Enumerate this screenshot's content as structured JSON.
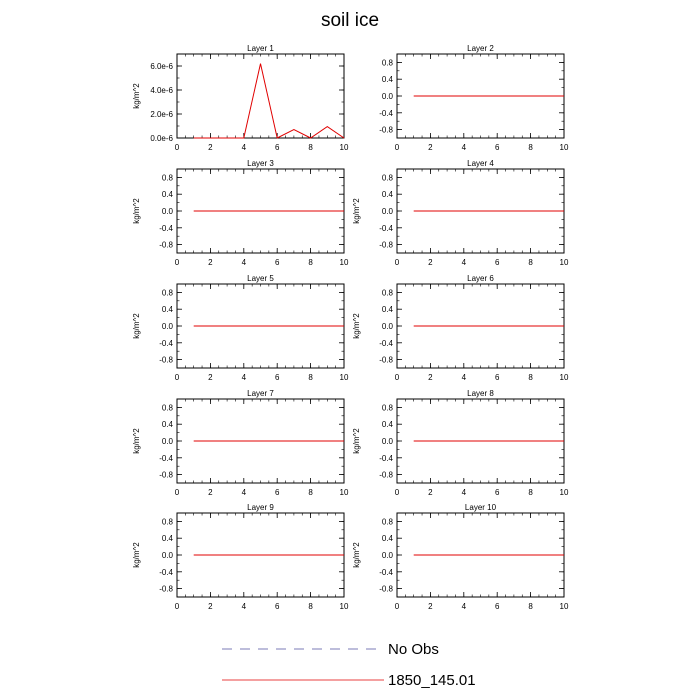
{
  "title": "soil ice",
  "legend": [
    {
      "label": "No Obs",
      "color": "#5050a0",
      "dash": true
    },
    {
      "label": "1850_145.01",
      "color": "#e00000",
      "dash": false
    }
  ],
  "chart_data": [
    {
      "type": "line",
      "title": "Layer 1",
      "ylabel": "kg/m^2",
      "xlim": [
        0,
        10
      ],
      "ylim": [
        0,
        7e-06
      ],
      "xticks": [
        "0",
        "2",
        "4",
        "6",
        "8",
        "10"
      ],
      "yticks": [
        0,
        2e-06,
        4e-06,
        6e-06
      ],
      "ytick_labels": [
        "0.0e-6",
        "2.0e-6",
        "4.0e-6",
        "6.0e-6"
      ],
      "series": [
        {
          "name": "1850_145.01",
          "color": "#e00000",
          "x": [
            1,
            2,
            3,
            4,
            5,
            6,
            7,
            8,
            9,
            10
          ],
          "y": [
            0,
            0,
            0,
            0,
            6.2e-06,
            0,
            7e-07,
            0,
            9.5e-07,
            0
          ]
        }
      ]
    },
    {
      "type": "line",
      "title": "Layer 2",
      "ylabel": "",
      "xlim": [
        0,
        10
      ],
      "ylim": [
        -1,
        1
      ],
      "xticks": [
        "0",
        "2",
        "4",
        "6",
        "8",
        "10"
      ],
      "yticks": [
        -0.8,
        -0.4,
        0,
        0.4,
        0.8
      ],
      "ytick_labels": [
        "-0.8",
        "-0.4",
        "0.0",
        "0.4",
        "0.8"
      ],
      "series": [
        {
          "name": "1850_145.01",
          "color": "#e00000",
          "x": [
            1,
            2,
            3,
            4,
            5,
            6,
            7,
            8,
            9,
            10
          ],
          "y": [
            0,
            0,
            0,
            0,
            0,
            0,
            0,
            0,
            0,
            0
          ]
        }
      ]
    },
    {
      "type": "line",
      "title": "Layer 3",
      "ylabel": "kg/m^2",
      "xlim": [
        0,
        10
      ],
      "ylim": [
        -1,
        1
      ],
      "xticks": [
        "0",
        "2",
        "4",
        "6",
        "8",
        "10"
      ],
      "yticks": [
        -0.8,
        -0.4,
        0,
        0.4,
        0.8
      ],
      "ytick_labels": [
        "-0.8",
        "-0.4",
        "0.0",
        "0.4",
        "0.8"
      ],
      "series": [
        {
          "name": "1850_145.01",
          "color": "#e00000",
          "x": [
            1,
            2,
            3,
            4,
            5,
            6,
            7,
            8,
            9,
            10
          ],
          "y": [
            0,
            0,
            0,
            0,
            0,
            0,
            0,
            0,
            0,
            0
          ]
        }
      ]
    },
    {
      "type": "line",
      "title": "Layer 4",
      "ylabel": "kg/m^2",
      "xlim": [
        0,
        10
      ],
      "ylim": [
        -1,
        1
      ],
      "xticks": [
        "0",
        "2",
        "4",
        "6",
        "8",
        "10"
      ],
      "yticks": [
        -0.8,
        -0.4,
        0,
        0.4,
        0.8
      ],
      "ytick_labels": [
        "-0.8",
        "-0.4",
        "0.0",
        "0.4",
        "0.8"
      ],
      "series": [
        {
          "name": "1850_145.01",
          "color": "#e00000",
          "x": [
            1,
            2,
            3,
            4,
            5,
            6,
            7,
            8,
            9,
            10
          ],
          "y": [
            0,
            0,
            0,
            0,
            0,
            0,
            0,
            0,
            0,
            0
          ]
        }
      ]
    },
    {
      "type": "line",
      "title": "Layer 5",
      "ylabel": "kg/m^2",
      "xlim": [
        0,
        10
      ],
      "ylim": [
        -1,
        1
      ],
      "xticks": [
        "0",
        "2",
        "4",
        "6",
        "8",
        "10"
      ],
      "yticks": [
        -0.8,
        -0.4,
        0,
        0.4,
        0.8
      ],
      "ytick_labels": [
        "-0.8",
        "-0.4",
        "0.0",
        "0.4",
        "0.8"
      ],
      "series": [
        {
          "name": "1850_145.01",
          "color": "#e00000",
          "x": [
            1,
            2,
            3,
            4,
            5,
            6,
            7,
            8,
            9,
            10
          ],
          "y": [
            0,
            0,
            0,
            0,
            0,
            0,
            0,
            0,
            0,
            0
          ]
        }
      ]
    },
    {
      "type": "line",
      "title": "Layer 6",
      "ylabel": "kg/m^2",
      "xlim": [
        0,
        10
      ],
      "ylim": [
        -1,
        1
      ],
      "xticks": [
        "0",
        "2",
        "4",
        "6",
        "8",
        "10"
      ],
      "yticks": [
        -0.8,
        -0.4,
        0,
        0.4,
        0.8
      ],
      "ytick_labels": [
        "-0.8",
        "-0.4",
        "0.0",
        "0.4",
        "0.8"
      ],
      "series": [
        {
          "name": "1850_145.01",
          "color": "#e00000",
          "x": [
            1,
            2,
            3,
            4,
            5,
            6,
            7,
            8,
            9,
            10
          ],
          "y": [
            0,
            0,
            0,
            0,
            0,
            0,
            0,
            0,
            0,
            0
          ]
        }
      ]
    },
    {
      "type": "line",
      "title": "Layer 7",
      "ylabel": "kg/m^2",
      "xlim": [
        0,
        10
      ],
      "ylim": [
        -1,
        1
      ],
      "xticks": [
        "0",
        "2",
        "4",
        "6",
        "8",
        "10"
      ],
      "yticks": [
        -0.8,
        -0.4,
        0,
        0.4,
        0.8
      ],
      "ytick_labels": [
        "-0.8",
        "-0.4",
        "0.0",
        "0.4",
        "0.8"
      ],
      "series": [
        {
          "name": "1850_145.01",
          "color": "#e00000",
          "x": [
            1,
            2,
            3,
            4,
            5,
            6,
            7,
            8,
            9,
            10
          ],
          "y": [
            0,
            0,
            0,
            0,
            0,
            0,
            0,
            0,
            0,
            0
          ]
        }
      ]
    },
    {
      "type": "line",
      "title": "Layer 8",
      "ylabel": "kg/m^2",
      "xlim": [
        0,
        10
      ],
      "ylim": [
        -1,
        1
      ],
      "xticks": [
        "0",
        "2",
        "4",
        "6",
        "8",
        "10"
      ],
      "yticks": [
        -0.8,
        -0.4,
        0,
        0.4,
        0.8
      ],
      "ytick_labels": [
        "-0.8",
        "-0.4",
        "0.0",
        "0.4",
        "0.8"
      ],
      "series": [
        {
          "name": "1850_145.01",
          "color": "#e00000",
          "x": [
            1,
            2,
            3,
            4,
            5,
            6,
            7,
            8,
            9,
            10
          ],
          "y": [
            0,
            0,
            0,
            0,
            0,
            0,
            0,
            0,
            0,
            0
          ]
        }
      ]
    },
    {
      "type": "line",
      "title": "Layer 9",
      "ylabel": "kg/m^2",
      "xlim": [
        0,
        10
      ],
      "ylim": [
        -1,
        1
      ],
      "xticks": [
        "0",
        "2",
        "4",
        "6",
        "8",
        "10"
      ],
      "yticks": [
        -0.8,
        -0.4,
        0,
        0.4,
        0.8
      ],
      "ytick_labels": [
        "-0.8",
        "-0.4",
        "0.0",
        "0.4",
        "0.8"
      ],
      "series": [
        {
          "name": "1850_145.01",
          "color": "#e00000",
          "x": [
            1,
            2,
            3,
            4,
            5,
            6,
            7,
            8,
            9,
            10
          ],
          "y": [
            0,
            0,
            0,
            0,
            0,
            0,
            0,
            0,
            0,
            0
          ]
        }
      ]
    },
    {
      "type": "line",
      "title": "Layer 10",
      "ylabel": "kg/m^2",
      "xlim": [
        0,
        10
      ],
      "ylim": [
        -1,
        1
      ],
      "xticks": [
        "0",
        "2",
        "4",
        "6",
        "8",
        "10"
      ],
      "yticks": [
        -0.8,
        -0.4,
        0,
        0.4,
        0.8
      ],
      "ytick_labels": [
        "-0.8",
        "-0.4",
        "0.0",
        "0.4",
        "0.8"
      ],
      "series": [
        {
          "name": "1850_145.01",
          "color": "#e00000",
          "x": [
            1,
            2,
            3,
            4,
            5,
            6,
            7,
            8,
            9,
            10
          ],
          "y": [
            0,
            0,
            0,
            0,
            0,
            0,
            0,
            0,
            0,
            0
          ]
        }
      ]
    }
  ]
}
